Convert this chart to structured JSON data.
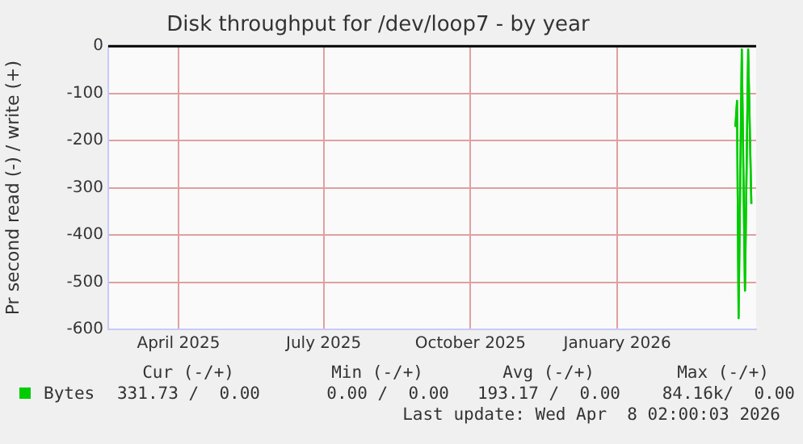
{
  "chart_data": {
    "type": "line",
    "title": "Disk throughput for /dev/loop7 - by year",
    "ylabel": "Pr second read (-) / write (+)",
    "series": [
      {
        "name": "Bytes",
        "color": "#00cc00",
        "x": [
          "2026-03-16",
          "2026-03-17",
          "2026-03-18",
          "2026-03-20",
          "2026-03-22",
          "2026-03-24",
          "2026-03-26"
        ],
        "values": [
          -171,
          -116,
          -576,
          -7,
          -518,
          -7,
          -334
        ]
      }
    ],
    "xlim": [
      "2025-02-16",
      "2026-03-29"
    ],
    "xticks": [
      {
        "value": "2025-04-01",
        "label": "April 2025"
      },
      {
        "value": "2025-07-01",
        "label": "July 2025"
      },
      {
        "value": "2025-10-01",
        "label": "October 2025"
      },
      {
        "value": "2026-01-01",
        "label": "January 2026"
      }
    ],
    "ylim": [
      -600,
      0
    ],
    "yticks": [
      -600,
      -500,
      -400,
      -300,
      -200,
      -100,
      0
    ],
    "ref_lines": [
      {
        "axis": "y",
        "value": 0,
        "color": "#000000"
      }
    ],
    "grid": true,
    "legend": "bottom",
    "marker": "none",
    "line_style": "solid",
    "annotations": [
      "Cur (-/+)",
      "Min (-/+)",
      "Avg (-/+)",
      "Max (-/+)",
      "331.73 /  0.00",
      "0.00 /  0.00",
      "193.17 /  0.00",
      "84.16k/  0.00",
      "Last update: Wed Apr  8 02:00:03 2026"
    ]
  }
}
